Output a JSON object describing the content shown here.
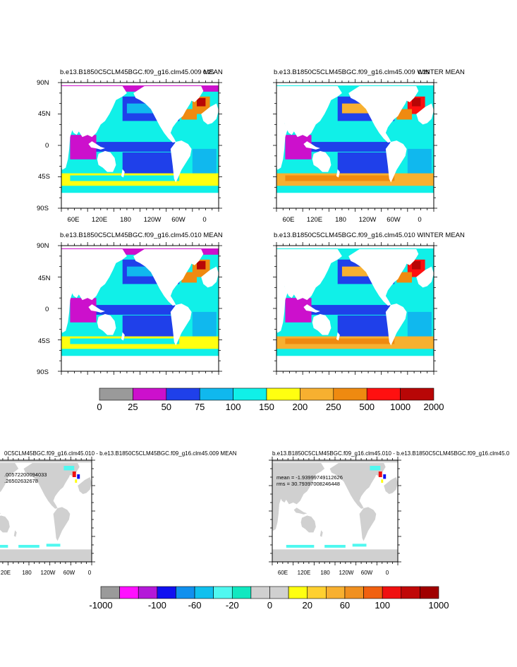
{
  "panels": [
    {
      "id": "p1",
      "title": "b.e13.B1850C5CLM45BGC.f09_g16.clm45.009 MEAN",
      "corner_label": "0.25",
      "stats": []
    },
    {
      "id": "p2",
      "title": "b.e13.B1850C5CLM45BGC.f09_g16.clm45.009 WINTER MEAN",
      "corner_label": "0.25",
      "stats": []
    },
    {
      "id": "p3",
      "title": "b.e13.B1850C5CLM45BGC.f09_g16.clm45.010 MEAN",
      "corner_label": "",
      "stats": []
    },
    {
      "id": "p4",
      "title": "b.e13.B1850C5CLM45BGC.f09_g16.clm45.010 WINTER MEAN",
      "corner_label": "",
      "stats": []
    },
    {
      "id": "p5",
      "title": "0C5CLM45BGC.f09_g16.clm45.010 - b.e13.B1850C5CLM45BGC.f09_g16.clm45.009 MEAN",
      "corner_label": "",
      "stats": [
        ".00572200094033",
        ".26502632678"
      ]
    },
    {
      "id": "p6",
      "title": "b.e13.B1850C5CLM45BGC.f09_g16.clm45.010 - b.e13.B1850C5CLM45BGC.f09_g16.clm45.0",
      "corner_label": "",
      "stats": [
        "mean = -1.93999749112626",
        "rms = 30.79397008246448"
      ]
    }
  ],
  "chart_data": [
    {
      "type": "heatmap",
      "title": "b.e13.B1850C5CLM45BGC.f09_g16.clm45.009 MEAN",
      "x_ticks": [
        "60E",
        "120E",
        "180",
        "120W",
        "60W",
        "0"
      ],
      "y_ticks": [
        "90N",
        "45N",
        "0",
        "45S",
        "90S"
      ],
      "xlim": [
        30,
        390
      ],
      "ylim": [
        -90,
        90
      ]
    },
    {
      "type": "heatmap",
      "title": "b.e13.B1850C5CLM45BGC.f09_g16.clm45.009 WINTER MEAN",
      "x_ticks": [
        "60E",
        "120E",
        "180",
        "120W",
        "60W",
        "0"
      ],
      "y_ticks": [],
      "xlim": [
        30,
        390
      ],
      "ylim": [
        -90,
        90
      ]
    },
    {
      "type": "heatmap",
      "title": "b.e13.B1850C5CLM45BGC.f09_g16.clm45.010 MEAN",
      "x_ticks": [],
      "y_ticks": [
        "90N",
        "45N",
        "0",
        "45S",
        "90S"
      ],
      "xlim": [
        30,
        390
      ],
      "ylim": [
        -90,
        90
      ]
    },
    {
      "type": "heatmap",
      "title": "b.e13.B1850C5CLM45BGC.f09_g16.clm45.010 WINTER MEAN",
      "x_ticks": [],
      "y_ticks": [],
      "xlim": [
        30,
        390
      ],
      "ylim": [
        -90,
        90
      ]
    },
    {
      "type": "heatmap",
      "title": "0C5CLM45BGC.f09_g16.clm45.010 - b.e13.B1850C5CLM45BGC.f09_g16.clm45.009 MEAN",
      "x_ticks": [
        "20E",
        "180",
        "120W",
        "60W",
        "0"
      ],
      "y_ticks": [],
      "xlim": [
        30,
        390
      ],
      "ylim": [
        -90,
        90
      ]
    },
    {
      "type": "heatmap",
      "title": "b.e13.B1850C5CLM45BGC.f09_g16.clm45.010 - b.e13.B1850C5CLM45BGC.f09_g16.clm45.0",
      "x_ticks": [
        "60E",
        "120E",
        "180",
        "120W",
        "60W",
        "0"
      ],
      "y_ticks": [],
      "xlim": [
        30,
        390
      ],
      "ylim": [
        -90,
        90
      ]
    }
  ],
  "colorbars": [
    {
      "id": "cb1",
      "colors": [
        "#9a9a9a",
        "#cc10cc",
        "#1f40ea",
        "#10b8ee",
        "#10f0e8",
        "#ffff10",
        "#f7b030",
        "#ef8a10",
        "#ff1010",
        "#b80606"
      ],
      "labels": [
        "0",
        "25",
        "50",
        "75",
        "100",
        "150",
        "200",
        "250",
        "500",
        "1000",
        "2000"
      ]
    },
    {
      "id": "cb2",
      "colors": [
        "#9a9a9a",
        "#ff10ff",
        "#b418d8",
        "#1010f0",
        "#1090ee",
        "#10c0ee",
        "#50f8f0",
        "#10e8c0",
        "#d0d0d0",
        "#d0d0d0",
        "#ffff10",
        "#ffd030",
        "#f8b030",
        "#f09020",
        "#f06010",
        "#f01010",
        "#c00808",
        "#a00000"
      ],
      "labels": [
        "-1000",
        "-100",
        "-60",
        "-20",
        "0",
        "20",
        "60",
        "100",
        "1000"
      ]
    }
  ]
}
